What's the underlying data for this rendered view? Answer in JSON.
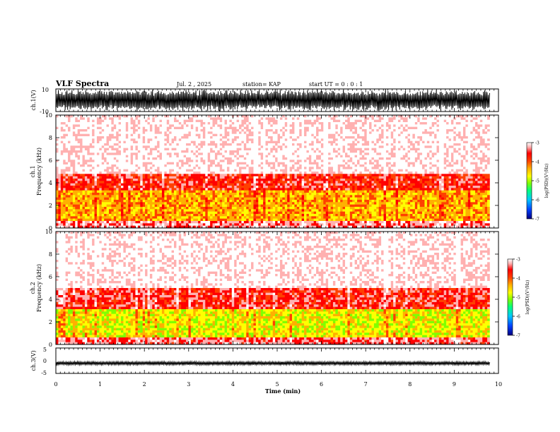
{
  "header": {
    "title": "VLF Spectra",
    "date": "Jul. 2 , 2025",
    "station": "station= KAP",
    "start_ut": "start UT = 0 : 0 : 1"
  },
  "chart_data": [
    {
      "type": "line",
      "panel": "ch1-waveform",
      "ylabel": "ch.1(V)",
      "ylim": [
        -10,
        10
      ],
      "yticks": [
        10,
        -10
      ],
      "xlim": [
        0,
        10
      ],
      "description_values": "dense oscillation spanning roughly -10 to 10 V over 0-9.8 min"
    },
    {
      "type": "heatmap",
      "panel": "ch1-spectrogram",
      "ylabel": "Frequency (kHz)",
      "ylabel_prefix": "ch.1",
      "ylim": [
        0,
        10
      ],
      "yticks": [
        0,
        2,
        4,
        6,
        8,
        10
      ],
      "xlim": [
        0,
        10
      ],
      "data_end_min": 9.8,
      "colorbar": {
        "label": "log(PSD)(V²/Hz)",
        "range": [
          -7,
          -3
        ],
        "ticks": [
          -3,
          -4,
          -5,
          -6,
          -7
        ]
      },
      "bands": [
        {
          "f_low": 0,
          "f_high": 0.7,
          "level": -3.5
        },
        {
          "f_low": 0.7,
          "f_high": 3.4,
          "level": -4.6
        },
        {
          "f_low": 3.4,
          "f_high": 4.8,
          "level": -3.9
        },
        {
          "f_low": 4.8,
          "f_high": 10,
          "level": -3.1
        }
      ]
    },
    {
      "type": "heatmap",
      "panel": "ch2-spectrogram",
      "ylabel": "Frequency (kHz)",
      "ylabel_prefix": "ch.2",
      "ylim": [
        0,
        10
      ],
      "yticks": [
        0,
        2,
        4,
        6,
        8,
        10
      ],
      "xlim": [
        0,
        10
      ],
      "data_end_min": 9.8,
      "colorbar": {
        "label": "log(PSD)(V²/Hz)",
        "range": [
          -7,
          -3
        ],
        "ticks": [
          -3,
          -4,
          -5,
          -6,
          -7
        ]
      },
      "bands": [
        {
          "f_low": 0,
          "f_high": 0.6,
          "level": -3.6
        },
        {
          "f_low": 0.6,
          "f_high": 3.2,
          "level": -5.0
        },
        {
          "f_low": 3.2,
          "f_high": 5.0,
          "level": -3.8
        },
        {
          "f_low": 5.0,
          "f_high": 10,
          "level": -3.1
        }
      ]
    },
    {
      "type": "line",
      "panel": "ch3-waveform",
      "ylabel": "ch.3(V)",
      "ylim": [
        -5,
        5
      ],
      "yticks": [
        5,
        0,
        -5
      ],
      "xlim": [
        0,
        10
      ],
      "series": [
        {
          "values_mean": -1.0
        }
      ]
    }
  ],
  "xaxis": {
    "label": "Time (min)",
    "ticks": [
      0,
      1,
      2,
      3,
      4,
      5,
      6,
      7,
      8,
      9,
      10
    ]
  },
  "colors": {
    "colormap": [
      "#00007f",
      "#0040ff",
      "#00c8ff",
      "#00ff80",
      "#80ff00",
      "#ffff00",
      "#ffb000",
      "#ff4000",
      "#ff0000",
      "#ffb0b0",
      "#ffffff"
    ],
    "ink": "#000000"
  }
}
